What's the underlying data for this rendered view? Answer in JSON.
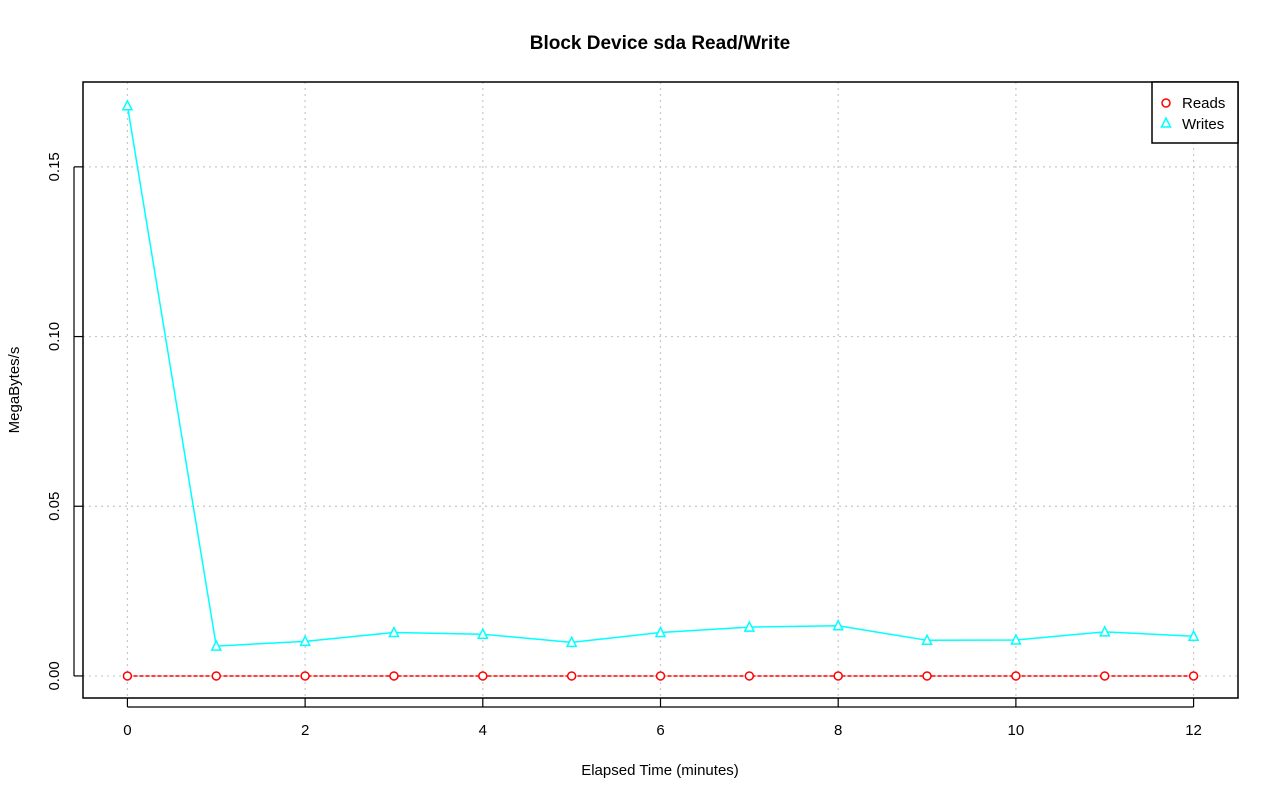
{
  "chart_data": {
    "type": "line",
    "title": "Block Device sda Read/Write",
    "xlabel": "Elapsed Time (minutes)",
    "ylabel": "MegaBytes/s",
    "xlim": [
      -0.5,
      12.5
    ],
    "ylim": [
      -0.0065,
      0.175
    ],
    "x_ticks": [
      "0",
      "2",
      "4",
      "6",
      "8",
      "10",
      "12"
    ],
    "y_ticks": [
      "0.00",
      "0.05",
      "0.10",
      "0.15"
    ],
    "grid": true,
    "legend_position": "top-right",
    "x": [
      0,
      1,
      2,
      3,
      4,
      5,
      6,
      7,
      8,
      9,
      10,
      11,
      12
    ],
    "series": [
      {
        "name": "Reads",
        "color": "#ff0000",
        "marker": "circle",
        "values": [
          0,
          0,
          0,
          0,
          0,
          0,
          0,
          0,
          0,
          0,
          0,
          0,
          0
        ]
      },
      {
        "name": "Writes",
        "color": "#00ffff",
        "marker": "triangle",
        "values": [
          0.168,
          0.0088,
          0.0102,
          0.0128,
          0.0123,
          0.0099,
          0.0128,
          0.0144,
          0.0148,
          0.0105,
          0.0106,
          0.013,
          0.0117
        ]
      }
    ]
  }
}
